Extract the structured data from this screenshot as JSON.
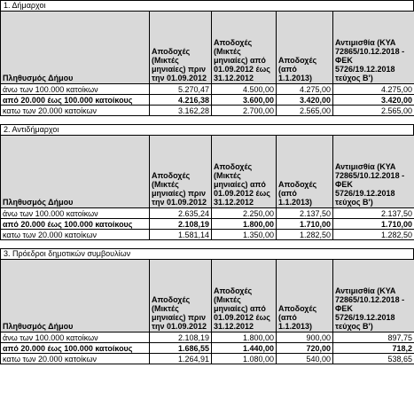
{
  "columns": {
    "population": "Πληθυσμός Δήμου",
    "col1": "Αποδοχές (Μικτές μηνιαίες) πριν την 01.09.2012",
    "col2": "Αποδοχές (Μικτές μηνιαίες) από 01.09.2012 έως 31.12.2012",
    "col3": "Αποδοχές (από 1.1.2013)",
    "col4": "Αντιμισθία (ΚΥΑ 72865/10.12.2018 - ΦΕΚ 5726/19.12.2018 τεύχος Β')"
  },
  "sections": [
    {
      "title": "1. Δήμαρχοι",
      "rows": [
        {
          "label": "άνω των 100.000 κατοίκων",
          "v1": "5.270,47",
          "v2": "4.500,00",
          "v3": "4.275,00",
          "v4": "4.275,00"
        },
        {
          "label": "από 20.000 έως 100.000 κατοίκους",
          "v1": "4.216,38",
          "v2": "3.600,00",
          "v3": "3.420,00",
          "v4": "3.420,00"
        },
        {
          "label": "κατω των 20.000 κατοίκων",
          "v1": "3.162,28",
          "v2": "2.700,00",
          "v3": "2.565,00",
          "v4": "2.565,00"
        }
      ]
    },
    {
      "title": "2. Αντιδήμαρχοι",
      "rows": [
        {
          "label": "άνω των 100.000 κατοίκων",
          "v1": "2.635,24",
          "v2": "2.250,00",
          "v3": "2.137,50",
          "v4": "2.137,50"
        },
        {
          "label": "από 20.000 έως 100.000 κατοίκους",
          "v1": "2.108,19",
          "v2": "1.800,00",
          "v3": "1.710,00",
          "v4": "1.710,00"
        },
        {
          "label": "κατω των 20.000 κατοίκων",
          "v1": "1.581,14",
          "v2": "1.350,00",
          "v3": "1.282,50",
          "v4": "1.282,50"
        }
      ]
    },
    {
      "title": "3. Πρόεδροι δημοτικών συμβουλίων",
      "rows": [
        {
          "label": "άνω των 100.000 κατοίκων",
          "v1": "2.108,19",
          "v2": "1.800,00",
          "v3": "900,00",
          "v4": "897,75"
        },
        {
          "label": "από 20.000 έως 100.000 κατοίκους",
          "v1": "1.686,55",
          "v2": "1.440,00",
          "v3": "720,00",
          "v4": "718,2"
        },
        {
          "label": "κατω των 20.000 κατοίκων",
          "v1": "1.264,91",
          "v2": "1.080,00",
          "v3": "540,00",
          "v4": "538,65"
        }
      ]
    }
  ]
}
